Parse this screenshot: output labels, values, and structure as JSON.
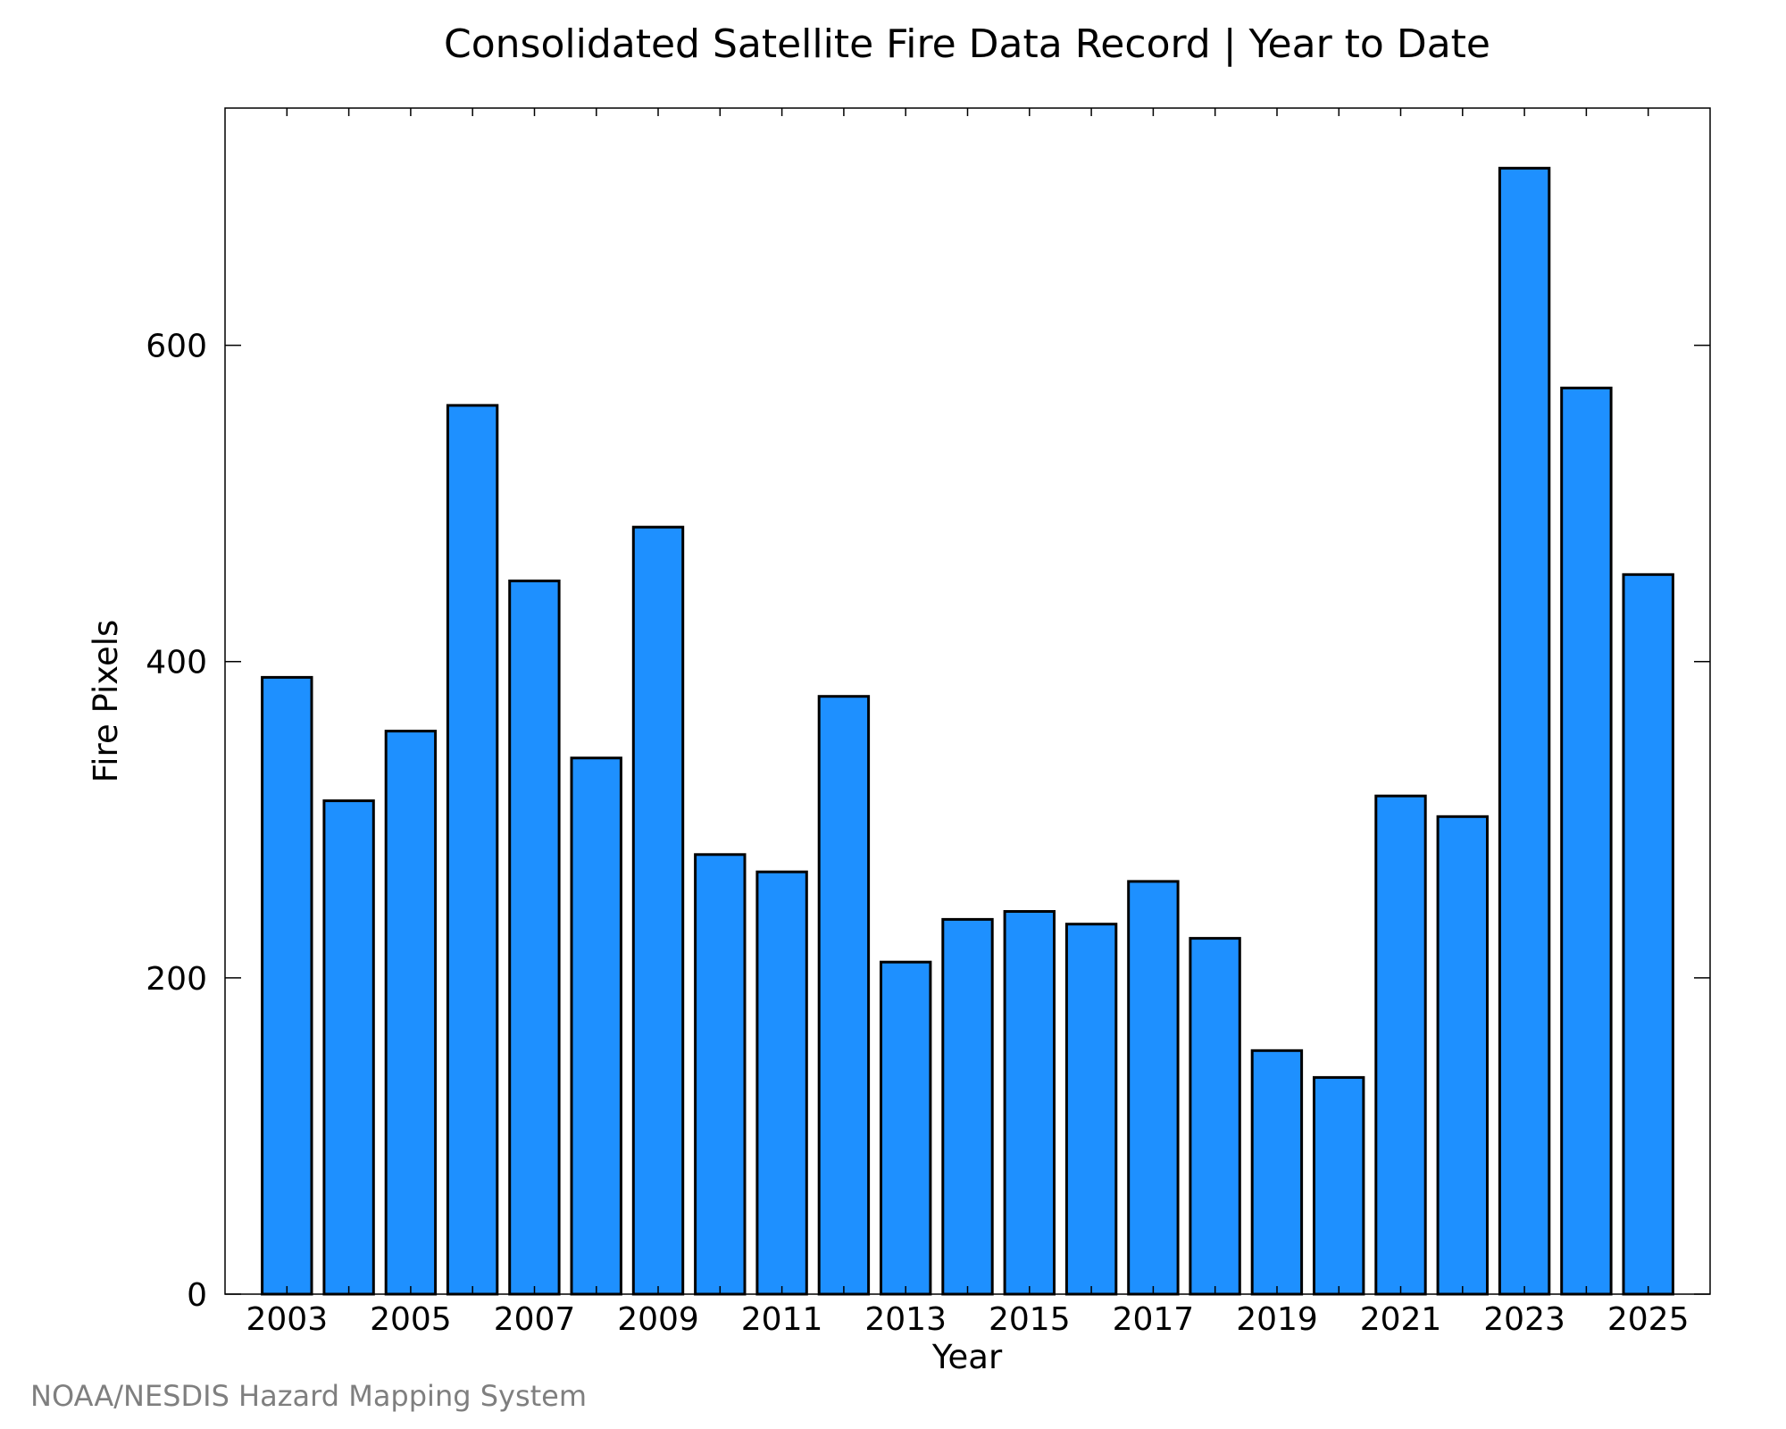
{
  "chart_data": {
    "type": "bar",
    "title": "Consolidated Satellite Fire Data Record | Year to Date",
    "xlabel": "Year",
    "ylabel": "Fire Pixels",
    "x": [
      2003,
      2004,
      2005,
      2006,
      2007,
      2008,
      2009,
      2010,
      2011,
      2012,
      2013,
      2014,
      2015,
      2016,
      2017,
      2018,
      2019,
      2020,
      2021,
      2022,
      2023,
      2024,
      2025
    ],
    "values": [
      390,
      312,
      356,
      562,
      451,
      339,
      485,
      278,
      267,
      378,
      210,
      237,
      242,
      234,
      261,
      225,
      154,
      137,
      315,
      302,
      712,
      573,
      455
    ],
    "x_ticks": [
      "2003",
      "2005",
      "2007",
      "2009",
      "2011",
      "2013",
      "2015",
      "2017",
      "2019",
      "2021",
      "2023",
      "2025"
    ],
    "y_ticks": [
      "0",
      "200",
      "400",
      "600"
    ],
    "xlim": [
      2002.0,
      2026.0
    ],
    "ylim": [
      0,
      750
    ],
    "grid": false,
    "bar_color": "#1e90ff",
    "edge_color": "#000000"
  },
  "credit": "NOAA/NESDIS Hazard Mapping System"
}
